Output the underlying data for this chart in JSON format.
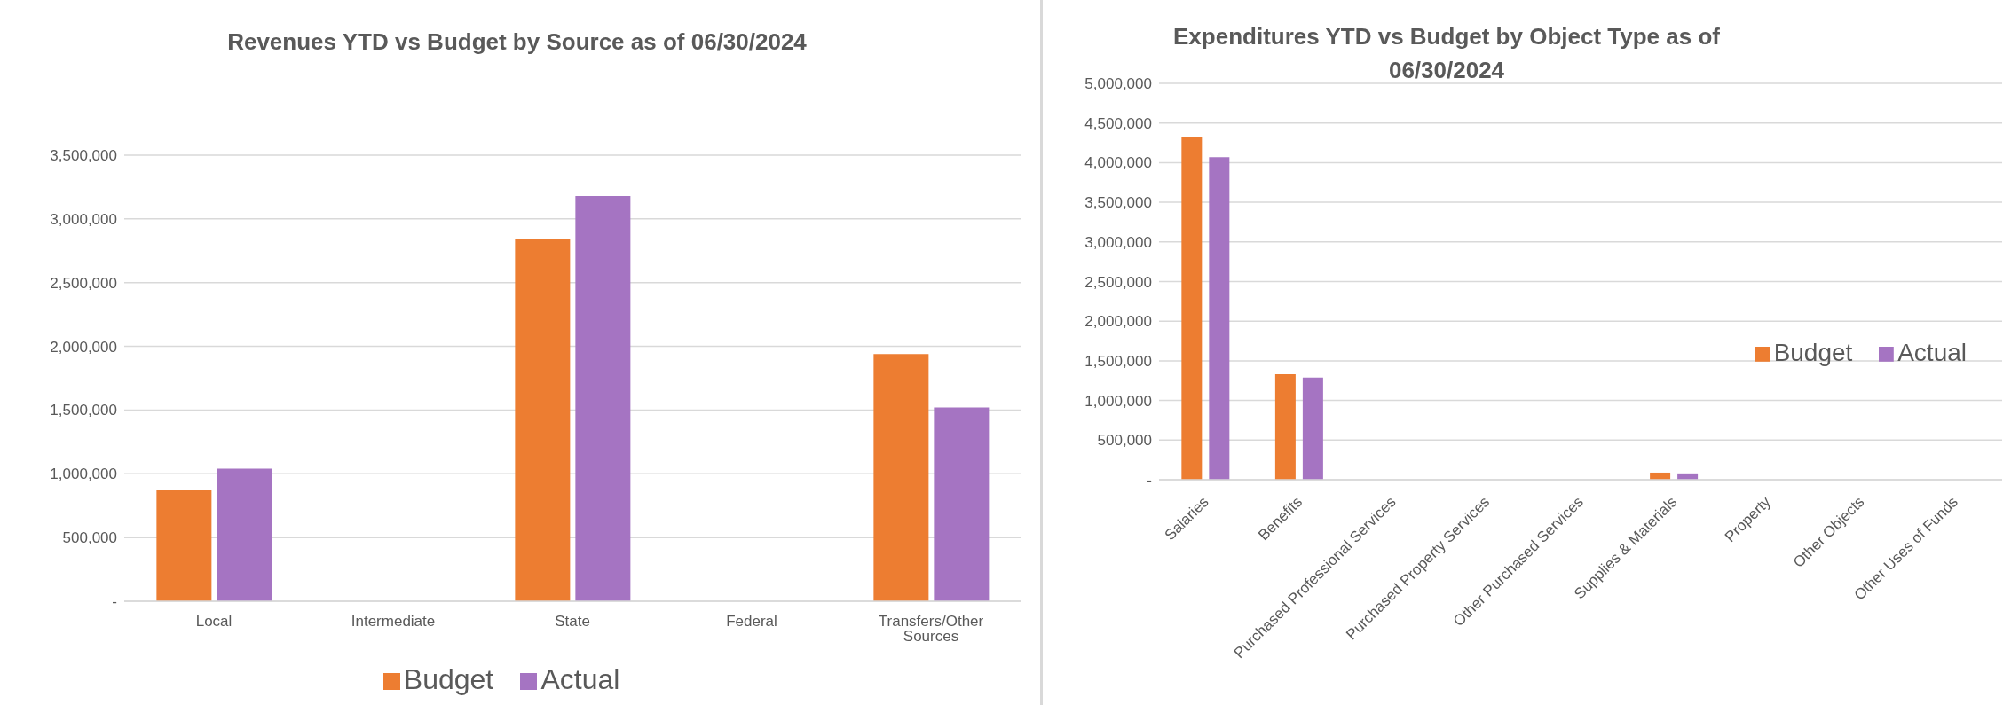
{
  "chart_data": [
    {
      "type": "bar",
      "title": "Revenues YTD vs Budget by Source as of 06/30/2024",
      "categories": [
        "Local",
        "Intermediate",
        "State",
        "Federal",
        "Transfers/Other Sources"
      ],
      "series": [
        {
          "name": "Budget",
          "color": "#ed7d31",
          "values": [
            870000,
            0,
            2840000,
            0,
            1940000
          ]
        },
        {
          "name": "Actual",
          "color": "#a574c2",
          "values": [
            1040000,
            0,
            3180000,
            0,
            1520000
          ]
        }
      ],
      "ylim": [
        0,
        3500000
      ],
      "yticks": [
        {
          "value": 0,
          "label": "-"
        },
        {
          "value": 500000,
          "label": "500,000"
        },
        {
          "value": 1000000,
          "label": "1,000,000"
        },
        {
          "value": 1500000,
          "label": "1,500,000"
        },
        {
          "value": 2000000,
          "label": "2,000,000"
        },
        {
          "value": 2500000,
          "label": "2,500,000"
        },
        {
          "value": 3000000,
          "label": "3,000,000"
        },
        {
          "value": 3500000,
          "label": "3,500,000"
        }
      ],
      "grid": "y",
      "legend": "bottom"
    },
    {
      "type": "bar",
      "title": "Expenditures YTD vs Budget by Object Type as of 06/30/2024",
      "categories": [
        "Salaries",
        "Benefits",
        "Purchased Professional Services",
        "Purchased Property Services",
        "Other Purchased Services",
        "Supplies & Materials",
        "Property",
        "Other Objects",
        "Other Uses of Funds"
      ],
      "series": [
        {
          "name": "Budget",
          "color": "#ed7d31",
          "values": [
            4330000,
            1330000,
            0,
            0,
            0,
            90000,
            0,
            0,
            0
          ]
        },
        {
          "name": "Actual",
          "color": "#a574c2",
          "values": [
            4070000,
            1290000,
            0,
            0,
            0,
            80000,
            0,
            0,
            0
          ]
        }
      ],
      "ylim": [
        0,
        5000000
      ],
      "yticks": [
        {
          "value": 0,
          "label": "-"
        },
        {
          "value": 500000,
          "label": "500,000"
        },
        {
          "value": 1000000,
          "label": "1,000,000"
        },
        {
          "value": 1500000,
          "label": "1,500,000"
        },
        {
          "value": 2000000,
          "label": "2,000,000"
        },
        {
          "value": 2500000,
          "label": "2,500,000"
        },
        {
          "value": 3000000,
          "label": "3,000,000"
        },
        {
          "value": 3500000,
          "label": "3,500,000"
        },
        {
          "value": 4000000,
          "label": "4,000,000"
        },
        {
          "value": 4500000,
          "label": "4,500,000"
        },
        {
          "value": 5000000,
          "label": "5,000,000"
        }
      ],
      "grid": "y",
      "legend": "right"
    }
  ]
}
